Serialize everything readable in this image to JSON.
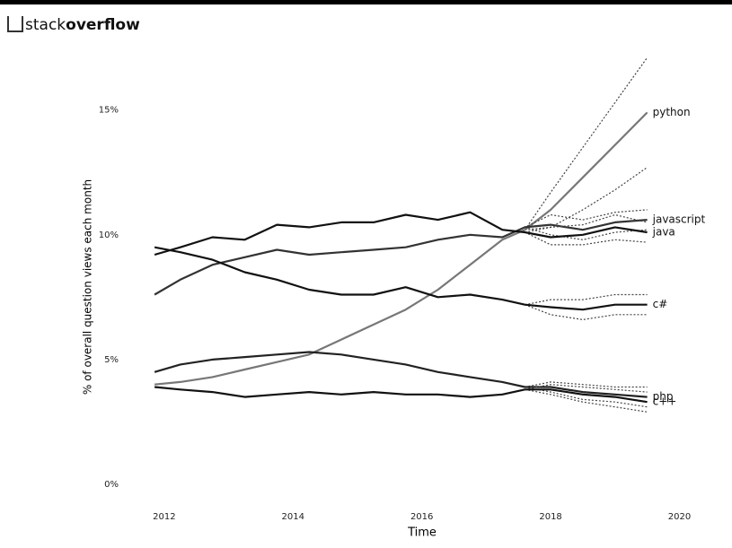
{
  "header": {
    "brand_light": "stack",
    "brand_bold": "overflow"
  },
  "chart_data": {
    "type": "line",
    "x_label": "Time",
    "y_label": "% of overall question views each month",
    "x": [
      2011.85,
      2012.25,
      2012.75,
      2013.25,
      2013.75,
      2014.25,
      2014.75,
      2015.25,
      2015.75,
      2016.25,
      2016.75,
      2017.25,
      2017.6,
      2018,
      2018.5,
      2019,
      2019.5
    ],
    "xlim": [
      2011.5,
      2020.3
    ],
    "xticks": [
      2012,
      2014,
      2016,
      2018,
      2020
    ],
    "ylim": [
      0,
      17
    ],
    "yticks": [
      {
        "value": 0,
        "label": "0%"
      },
      {
        "value": 5,
        "label": "5%"
      },
      {
        "value": 10,
        "label": "10%"
      },
      {
        "value": 15,
        "label": "15%"
      }
    ],
    "series": [
      {
        "name": "python",
        "color": "#777777",
        "values": [
          4.0,
          4.1,
          4.3,
          4.6,
          4.9,
          5.2,
          5.8,
          6.4,
          7.0,
          7.8,
          8.8,
          9.8,
          10.2,
          11.0,
          12.3,
          13.6,
          14.9
        ],
        "lower": [
          null,
          null,
          null,
          null,
          null,
          null,
          null,
          null,
          null,
          null,
          null,
          null,
          10.2,
          10.3,
          11.0,
          11.8,
          12.7
        ],
        "upper": [
          null,
          null,
          null,
          null,
          null,
          null,
          null,
          null,
          null,
          null,
          null,
          null,
          10.2,
          11.7,
          13.5,
          15.3,
          17.1
        ]
      },
      {
        "name": "javascript",
        "color": "#333333",
        "values": [
          7.6,
          8.2,
          8.8,
          9.1,
          9.4,
          9.2,
          9.3,
          9.4,
          9.5,
          9.8,
          10.0,
          9.9,
          10.3,
          10.4,
          10.2,
          10.5,
          10.6
        ],
        "lower": [
          null,
          null,
          null,
          null,
          null,
          null,
          null,
          null,
          null,
          null,
          null,
          null,
          10.3,
          10.0,
          9.8,
          10.1,
          10.2
        ],
        "upper": [
          null,
          null,
          null,
          null,
          null,
          null,
          null,
          null,
          null,
          null,
          null,
          null,
          10.3,
          10.8,
          10.6,
          10.9,
          11.0
        ]
      },
      {
        "name": "java",
        "color": "#111111",
        "values": [
          9.2,
          9.5,
          9.9,
          9.8,
          10.4,
          10.3,
          10.5,
          10.5,
          10.8,
          10.6,
          10.9,
          10.2,
          10.1,
          9.9,
          10.0,
          10.3,
          10.1
        ],
        "lower": [
          null,
          null,
          null,
          null,
          null,
          null,
          null,
          null,
          null,
          null,
          null,
          null,
          10.1,
          9.6,
          9.6,
          9.8,
          9.7
        ],
        "upper": [
          null,
          null,
          null,
          null,
          null,
          null,
          null,
          null,
          null,
          null,
          null,
          null,
          10.1,
          10.3,
          10.4,
          10.8,
          10.5
        ]
      },
      {
        "name": "c#",
        "color": "#111111",
        "values": [
          9.5,
          9.3,
          9.0,
          8.5,
          8.2,
          7.8,
          7.6,
          7.6,
          7.9,
          7.5,
          7.6,
          7.4,
          7.2,
          7.1,
          7.0,
          7.2,
          7.2
        ],
        "lower": [
          null,
          null,
          null,
          null,
          null,
          null,
          null,
          null,
          null,
          null,
          null,
          null,
          7.2,
          6.8,
          6.6,
          6.8,
          6.8
        ],
        "upper": [
          null,
          null,
          null,
          null,
          null,
          null,
          null,
          null,
          null,
          null,
          null,
          null,
          7.2,
          7.4,
          7.4,
          7.6,
          7.6
        ]
      },
      {
        "name": "php",
        "color": "#222222",
        "values": [
          4.5,
          4.8,
          5.0,
          5.1,
          5.2,
          5.3,
          5.2,
          5.0,
          4.8,
          4.5,
          4.3,
          4.1,
          3.9,
          3.9,
          3.7,
          3.6,
          3.5
        ],
        "lower": [
          null,
          null,
          null,
          null,
          null,
          null,
          null,
          null,
          null,
          null,
          null,
          null,
          3.9,
          3.7,
          3.4,
          3.3,
          3.1
        ],
        "upper": [
          null,
          null,
          null,
          null,
          null,
          null,
          null,
          null,
          null,
          null,
          null,
          null,
          3.9,
          4.1,
          4.0,
          3.9,
          3.9
        ]
      },
      {
        "name": "c++",
        "color": "#111111",
        "values": [
          3.9,
          3.8,
          3.7,
          3.5,
          3.6,
          3.7,
          3.6,
          3.7,
          3.6,
          3.6,
          3.5,
          3.6,
          3.8,
          3.8,
          3.6,
          3.5,
          3.3
        ],
        "lower": [
          null,
          null,
          null,
          null,
          null,
          null,
          null,
          null,
          null,
          null,
          null,
          null,
          3.8,
          3.6,
          3.3,
          3.1,
          2.9
        ],
        "upper": [
          null,
          null,
          null,
          null,
          null,
          null,
          null,
          null,
          null,
          null,
          null,
          null,
          3.8,
          4.0,
          3.9,
          3.8,
          3.7
        ]
      }
    ]
  }
}
